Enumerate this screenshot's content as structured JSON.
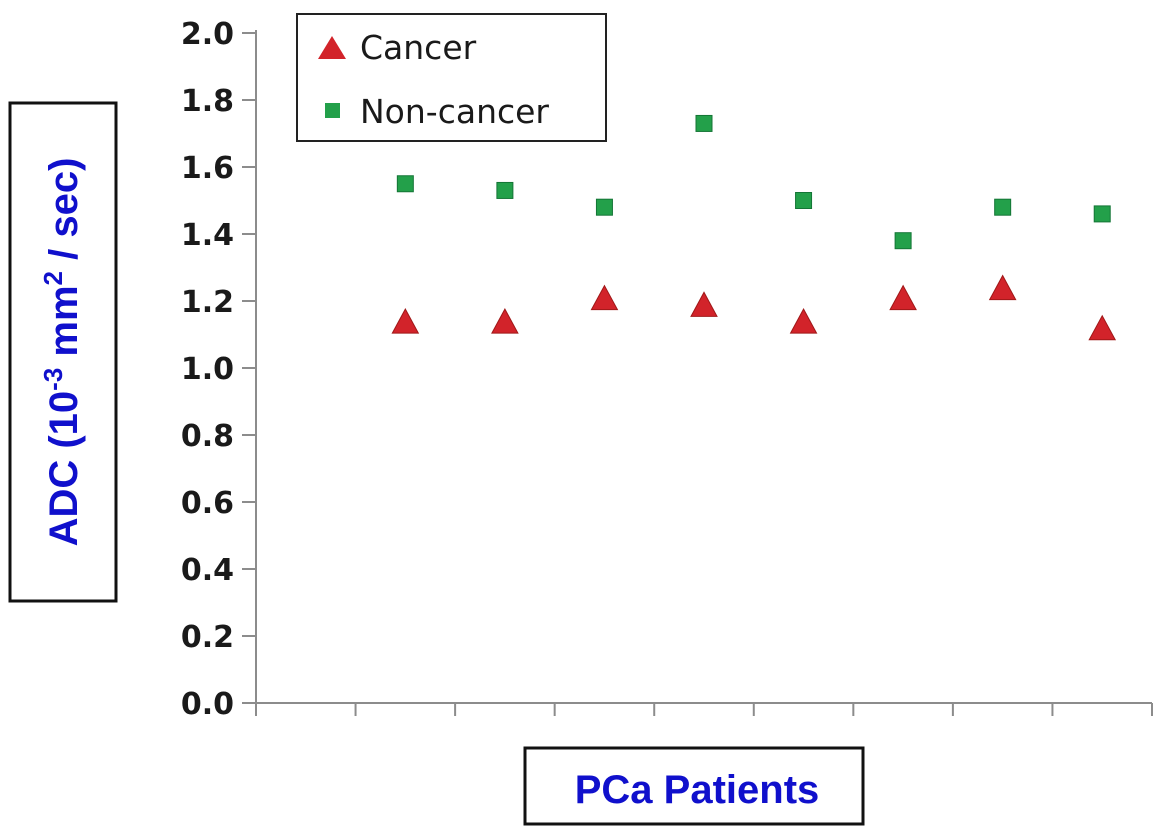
{
  "chart_data": {
    "type": "scatter",
    "title": "",
    "xlabel": "PCa Patients",
    "ylabel": {
      "main": "ADC (10",
      "exp1": "-3",
      "mid": " mm",
      "exp2": "2",
      "tail": " / sec)"
    },
    "ylim": [
      0,
      2.0
    ],
    "yticks": [
      "0.0",
      "0.2",
      "0.4",
      "0.6",
      "0.8",
      "1.0",
      "1.2",
      "1.4",
      "1.6",
      "1.8",
      "2.0"
    ],
    "x": [
      1,
      2,
      3,
      4,
      5,
      6,
      7,
      8
    ],
    "series": [
      {
        "name": "Cancer",
        "marker": "triangle",
        "color": "#d2232a",
        "values": [
          1.14,
          1.14,
          1.21,
          1.19,
          1.14,
          1.21,
          1.24,
          1.12
        ]
      },
      {
        "name": "Non-cancer",
        "marker": "square",
        "color": "#23a04a",
        "values": [
          1.55,
          1.53,
          1.48,
          1.73,
          1.5,
          1.38,
          1.48,
          1.46
        ]
      }
    ],
    "legend": "top-left",
    "grid": false
  }
}
